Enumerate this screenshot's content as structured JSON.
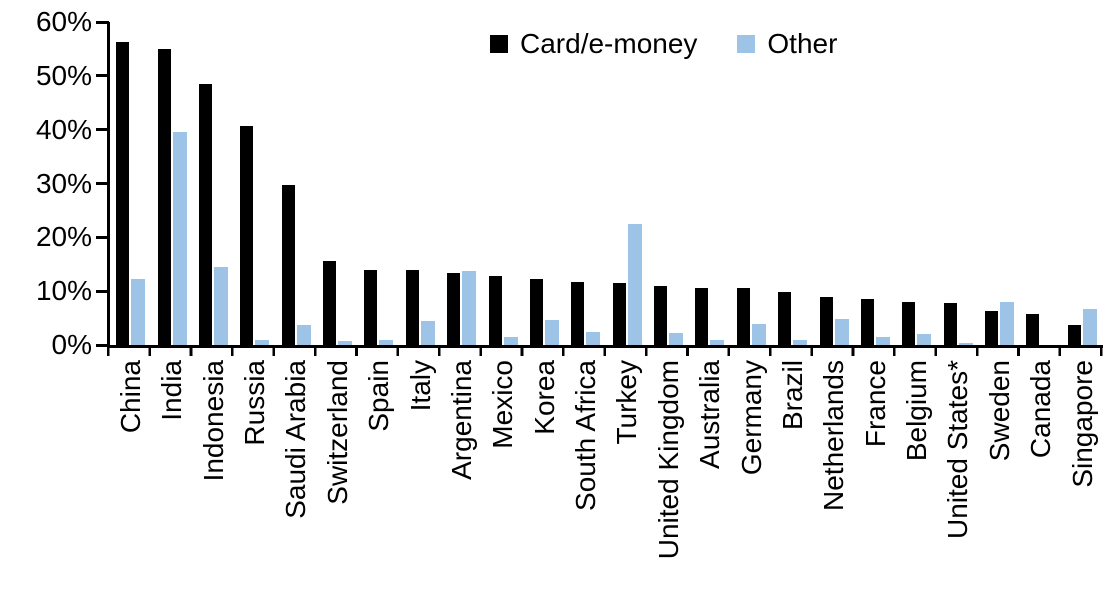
{
  "chart_data": {
    "type": "bar",
    "title": "",
    "xlabel": "",
    "ylabel": "",
    "ylim": [
      0,
      60
    ],
    "ytick_labels": [
      "0%",
      "10%",
      "20%",
      "30%",
      "40%",
      "50%",
      "60%"
    ],
    "grid": false,
    "legend_position": "top-center",
    "categories": [
      "China",
      "India",
      "Indonesia",
      "Russia",
      "Saudi Arabia",
      "Switzerland",
      "Spain",
      "Italy",
      "Argentina",
      "Mexico",
      "Korea",
      "South Africa",
      "Turkey",
      "United Kingdom",
      "Australia",
      "Germany",
      "Brazil",
      "Netherlands",
      "France",
      "Belgium",
      "United States*",
      "Sweden",
      "Canada",
      "Singapore"
    ],
    "series": [
      {
        "name": "Card/e-money",
        "color": "#000000",
        "values": [
          56.3,
          55.0,
          48.4,
          40.6,
          29.8,
          15.6,
          14.0,
          13.9,
          13.3,
          12.8,
          12.2,
          11.7,
          11.5,
          10.9,
          10.6,
          10.5,
          9.8,
          9.0,
          8.5,
          7.9,
          7.8,
          6.4,
          5.8,
          3.7
        ]
      },
      {
        "name": "Other",
        "color": "#9DC3E6",
        "values": [
          12.2,
          39.5,
          14.5,
          0.9,
          3.7,
          0.7,
          0.9,
          4.5,
          13.7,
          1.4,
          4.7,
          2.5,
          22.4,
          2.3,
          0.9,
          3.9,
          1.0,
          4.9,
          1.5,
          2.0,
          0.4,
          8.0,
          0,
          6.6
        ]
      }
    ]
  }
}
